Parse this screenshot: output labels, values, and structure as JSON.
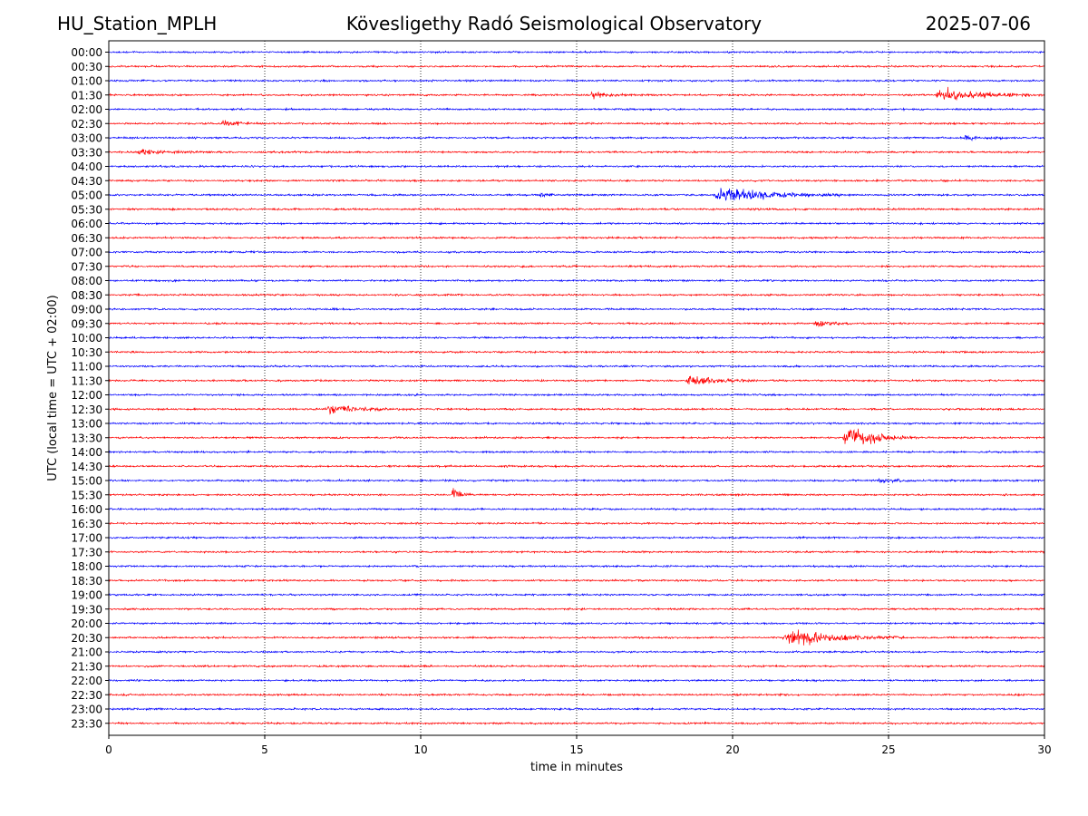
{
  "header": {
    "station": "HU_Station_MPLH",
    "observatory": "Kövesligethy Radó Seismological Observatory",
    "date": "2025-07-06"
  },
  "chart_data": {
    "type": "line",
    "xlabel": "time in minutes",
    "ylabel": "UTC (local time = UTC + 02:00)",
    "xlim": [
      0,
      30
    ],
    "x_ticks": [
      "0",
      "5",
      "10",
      "15",
      "20",
      "25",
      "30"
    ],
    "grid": "vertical dotted lines at every 5 minutes",
    "row_labels": [
      "00:00",
      "00:30",
      "01:00",
      "01:30",
      "02:00",
      "02:30",
      "03:00",
      "03:30",
      "04:00",
      "04:30",
      "05:00",
      "05:30",
      "06:00",
      "06:30",
      "07:00",
      "07:30",
      "08:00",
      "08:30",
      "09:00",
      "09:30",
      "10:00",
      "10:30",
      "11:00",
      "11:30",
      "12:00",
      "12:30",
      "13:00",
      "13:30",
      "14:00",
      "14:30",
      "15:00",
      "15:30",
      "16:00",
      "16:30",
      "17:00",
      "17:30",
      "18:00",
      "18:30",
      "19:00",
      "19:30",
      "20:00",
      "20:30",
      "21:00",
      "21:30",
      "22:00",
      "22:30",
      "23:00",
      "23:30"
    ],
    "trace_colors": [
      "#0000ff",
      "#ff0000"
    ],
    "events": [
      {
        "row": "01:30",
        "start_min": 15.4,
        "end_min": 17.0,
        "peak_amplitude": 4
      },
      {
        "row": "01:30",
        "start_min": 26.5,
        "end_min": 30.0,
        "peak_amplitude": 9
      },
      {
        "row": "02:30",
        "start_min": 3.6,
        "end_min": 5.0,
        "peak_amplitude": 4
      },
      {
        "row": "03:00",
        "start_min": 27.4,
        "end_min": 28.8,
        "peak_amplitude": 3
      },
      {
        "row": "03:30",
        "start_min": 0.8,
        "end_min": 3.2,
        "peak_amplitude": 3
      },
      {
        "row": "05:00",
        "start_min": 13.8,
        "end_min": 14.8,
        "peak_amplitude": 2
      },
      {
        "row": "05:00",
        "start_min": 19.4,
        "end_min": 23.5,
        "peak_amplitude": 11
      },
      {
        "row": "09:30",
        "start_min": 22.6,
        "end_min": 24.0,
        "peak_amplitude": 5
      },
      {
        "row": "11:30",
        "start_min": 18.5,
        "end_min": 20.8,
        "peak_amplitude": 7
      },
      {
        "row": "12:30",
        "start_min": 6.9,
        "end_min": 10.0,
        "peak_amplitude": 5
      },
      {
        "row": "13:30",
        "start_min": 23.5,
        "end_min": 26.0,
        "peak_amplitude": 16
      },
      {
        "row": "14:30",
        "start_min": 12.6,
        "end_min": 13.0,
        "peak_amplitude": 2
      },
      {
        "row": "15:00",
        "start_min": 24.6,
        "end_min": 26.0,
        "peak_amplitude": 3
      },
      {
        "row": "15:30",
        "start_min": 11.0,
        "end_min": 11.6,
        "peak_amplitude": 10
      },
      {
        "row": "20:30",
        "start_min": 21.6,
        "end_min": 25.5,
        "peak_amplitude": 13
      }
    ]
  }
}
